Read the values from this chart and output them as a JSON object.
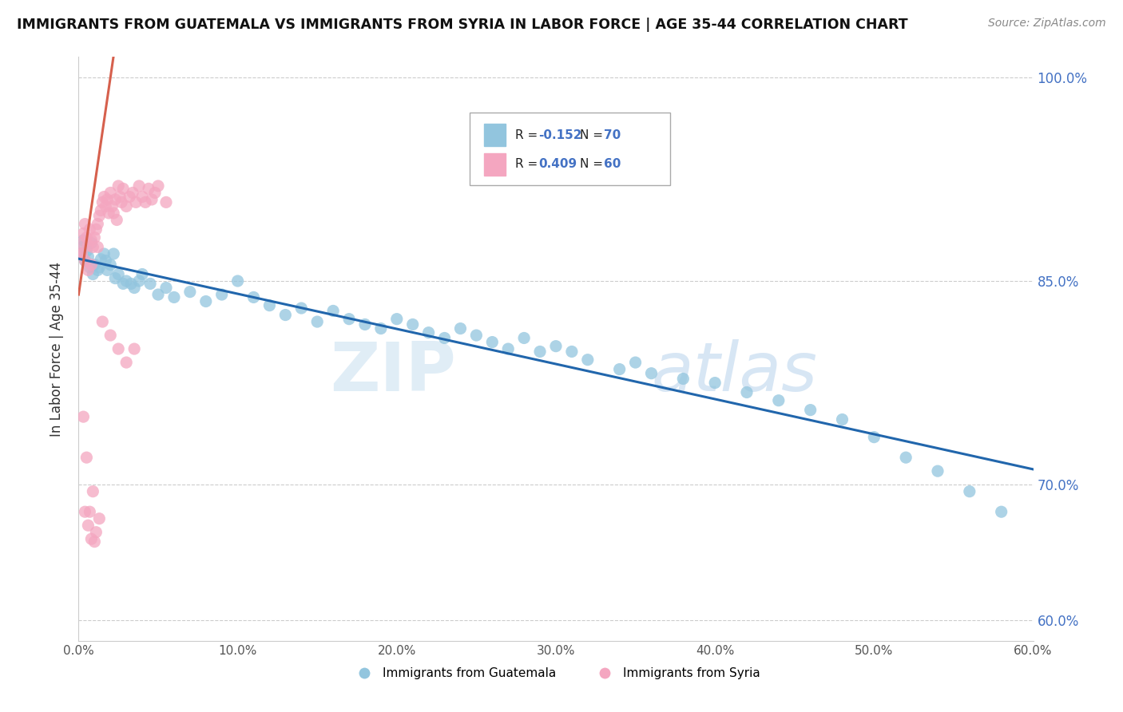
{
  "title": "IMMIGRANTS FROM GUATEMALA VS IMMIGRANTS FROM SYRIA IN LABOR FORCE | AGE 35-44 CORRELATION CHART",
  "source": "Source: ZipAtlas.com",
  "ylabel": "In Labor Force | Age 35-44",
  "legend_label1": "Immigrants from Guatemala",
  "legend_label2": "Immigrants from Syria",
  "R1": -0.152,
  "N1": 70,
  "R2": 0.409,
  "N2": 60,
  "color_blue": "#92c5de",
  "color_pink": "#f4a6c0",
  "color_trendline_blue": "#2166ac",
  "color_trendline_pink": "#d6604d",
  "xlim": [
    0.0,
    0.6
  ],
  "ylim": [
    0.585,
    1.015
  ],
  "yticks": [
    0.6,
    0.7,
    0.85,
    1.0
  ],
  "ytick_labels": [
    "60.0%",
    "70.0%",
    "85.0%",
    "100.0%"
  ],
  "xticks": [
    0.0,
    0.1,
    0.2,
    0.3,
    0.4,
    0.5,
    0.6
  ],
  "xtick_labels": [
    "0.0%",
    "10.0%",
    "20.0%",
    "30.0%",
    "40.0%",
    "50.0%",
    "60.0%"
  ],
  "grid_color": "#cccccc",
  "background_color": "#ffffff",
  "watermark_zip": "ZIP",
  "watermark_atlas": "atlas",
  "guatemala_x": [
    0.001,
    0.002,
    0.003,
    0.004,
    0.005,
    0.006,
    0.007,
    0.008,
    0.009,
    0.01,
    0.012,
    0.014,
    0.016,
    0.018,
    0.02,
    0.022,
    0.025,
    0.028,
    0.03,
    0.035,
    0.04,
    0.045,
    0.05,
    0.055,
    0.06,
    0.07,
    0.08,
    0.09,
    0.1,
    0.11,
    0.12,
    0.13,
    0.14,
    0.15,
    0.16,
    0.17,
    0.18,
    0.19,
    0.2,
    0.21,
    0.22,
    0.23,
    0.24,
    0.25,
    0.26,
    0.27,
    0.28,
    0.29,
    0.3,
    0.31,
    0.32,
    0.34,
    0.35,
    0.36,
    0.38,
    0.4,
    0.42,
    0.44,
    0.46,
    0.48,
    0.5,
    0.52,
    0.54,
    0.56,
    0.58,
    0.013,
    0.017,
    0.023,
    0.033,
    0.038
  ],
  "guatemala_y": [
    0.87,
    0.875,
    0.88,
    0.865,
    0.872,
    0.868,
    0.86,
    0.878,
    0.855,
    0.862,
    0.858,
    0.866,
    0.87,
    0.858,
    0.862,
    0.87,
    0.855,
    0.848,
    0.85,
    0.845,
    0.855,
    0.848,
    0.84,
    0.845,
    0.838,
    0.842,
    0.835,
    0.84,
    0.85,
    0.838,
    0.832,
    0.825,
    0.83,
    0.82,
    0.828,
    0.822,
    0.818,
    0.815,
    0.822,
    0.818,
    0.812,
    0.808,
    0.815,
    0.81,
    0.805,
    0.8,
    0.808,
    0.798,
    0.802,
    0.798,
    0.792,
    0.785,
    0.79,
    0.782,
    0.778,
    0.775,
    0.768,
    0.762,
    0.755,
    0.748,
    0.735,
    0.72,
    0.71,
    0.695,
    0.68,
    0.86,
    0.865,
    0.852,
    0.848,
    0.85
  ],
  "syria_x": [
    0.001,
    0.002,
    0.003,
    0.004,
    0.005,
    0.006,
    0.007,
    0.008,
    0.009,
    0.01,
    0.011,
    0.012,
    0.013,
    0.014,
    0.015,
    0.016,
    0.017,
    0.018,
    0.019,
    0.02,
    0.021,
    0.022,
    0.023,
    0.024,
    0.025,
    0.026,
    0.027,
    0.028,
    0.03,
    0.032,
    0.034,
    0.036,
    0.038,
    0.04,
    0.042,
    0.044,
    0.046,
    0.048,
    0.05,
    0.055,
    0.003,
    0.005,
    0.007,
    0.009,
    0.011,
    0.013,
    0.008,
    0.006,
    0.004,
    0.01,
    0.015,
    0.02,
    0.025,
    0.03,
    0.035,
    0.002,
    0.004,
    0.006,
    0.008,
    0.012
  ],
  "syria_y": [
    0.87,
    0.878,
    0.885,
    0.892,
    0.882,
    0.876,
    0.888,
    0.88,
    0.875,
    0.882,
    0.888,
    0.892,
    0.898,
    0.902,
    0.908,
    0.912,
    0.905,
    0.91,
    0.9,
    0.915,
    0.905,
    0.9,
    0.91,
    0.895,
    0.92,
    0.912,
    0.908,
    0.918,
    0.905,
    0.912,
    0.915,
    0.908,
    0.92,
    0.912,
    0.908,
    0.918,
    0.91,
    0.915,
    0.92,
    0.908,
    0.75,
    0.72,
    0.68,
    0.695,
    0.665,
    0.675,
    0.66,
    0.67,
    0.68,
    0.658,
    0.82,
    0.81,
    0.8,
    0.79,
    0.8,
    0.87,
    0.865,
    0.858,
    0.862,
    0.875
  ]
}
